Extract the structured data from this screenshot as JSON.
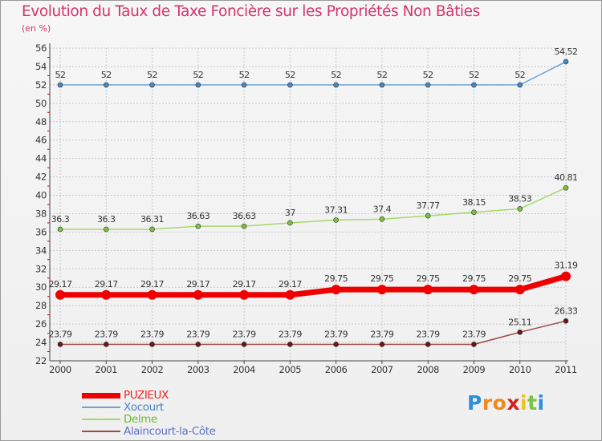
{
  "header": {
    "title": "Evolution du Taux de Taxe Foncière sur les Propriétés Non Bâties",
    "subtitle": "(en %)"
  },
  "colors": {
    "title": "#d2356b",
    "grid": "#c8c8c8",
    "axis": "#444444",
    "zero_line_tick": "#cc0000"
  },
  "chart_data": {
    "type": "line",
    "title": "Evolution du Taux de Taxe Foncière sur les Propriétés Non Bâties",
    "ylabel": "(en %)",
    "xlabel": "",
    "categories": [
      "2000",
      "2001",
      "2002",
      "2003",
      "2004",
      "2005",
      "2006",
      "2007",
      "2008",
      "2009",
      "2010",
      "2011"
    ],
    "ylim": [
      22,
      56
    ],
    "yticks": [
      "22",
      "24",
      "26",
      "28",
      "30",
      "32",
      "34",
      "36",
      "38",
      "40",
      "42",
      "44",
      "46",
      "48",
      "50",
      "52",
      "54",
      "56"
    ],
    "grid": true,
    "legend_position": "bottom-left",
    "series": [
      {
        "name": "Xocourt",
        "color": "#6aa3d5",
        "marker": "#4a86c2",
        "values": [
          52,
          52,
          52,
          52,
          52,
          52,
          52,
          52,
          52,
          52,
          52,
          54.52
        ],
        "labels": [
          "52",
          "52",
          "52",
          "52",
          "52",
          "52",
          "52",
          "52",
          "52",
          "52",
          "52",
          "54.52"
        ]
      },
      {
        "name": "Delme",
        "color": "#a6d96a",
        "marker": "#7cc242",
        "values": [
          36.3,
          36.3,
          36.31,
          36.63,
          36.63,
          37,
          37.31,
          37.4,
          37.77,
          38.15,
          38.53,
          40.81
        ],
        "labels": [
          "36.3",
          "36.3",
          "36.31",
          "36.63",
          "36.63",
          "37",
          "37.31",
          "37.4",
          "37.77",
          "38.15",
          "38.53",
          "40.81"
        ]
      },
      {
        "name": "PUZIEUX",
        "color": "#ee0000",
        "marker": "#ee0000",
        "values": [
          29.17,
          29.17,
          29.17,
          29.17,
          29.17,
          29.17,
          29.75,
          29.75,
          29.75,
          29.75,
          29.75,
          31.19
        ],
        "labels": [
          "29.17",
          "29.17",
          "29.17",
          "29.17",
          "29.17",
          "29.17",
          "29.75",
          "29.75",
          "29.75",
          "29.75",
          "29.75",
          "31.19"
        ]
      },
      {
        "name": "Alaincourt-la-Côte",
        "color": "#9c4a4a",
        "marker": "#6b1515",
        "values": [
          23.79,
          23.79,
          23.79,
          23.79,
          23.79,
          23.79,
          23.79,
          23.79,
          23.79,
          23.79,
          25.11,
          26.33
        ],
        "labels": [
          "23.79",
          "23.79",
          "23.79",
          "23.79",
          "23.79",
          "23.79",
          "23.79",
          "23.79",
          "23.79",
          "23.79",
          "25.11",
          "26.33"
        ]
      }
    ]
  },
  "legend": {
    "items": [
      {
        "label": "PUZIEUX",
        "color": "#ee0000",
        "label_color": "#ee2222"
      },
      {
        "label": "Xocourt",
        "color": "#6aa3d5",
        "label_color": "#4a86c2"
      },
      {
        "label": "Delme",
        "color": "#a6d96a",
        "label_color": "#6fb83a"
      },
      {
        "label": "Alaincourt-la-Côte",
        "color": "#9c4a4a",
        "label_color": "#5a73c9"
      }
    ]
  },
  "logo": {
    "text": "Proxiti",
    "letters": [
      "P",
      "r",
      "o",
      "x",
      "i",
      "t",
      "i"
    ],
    "letter_colors": [
      "#2e8fd8",
      "#f08a1c",
      "#f08a1c",
      "#d42020",
      "#f0c21c",
      "#7cc242",
      "#2e8fd8"
    ]
  }
}
